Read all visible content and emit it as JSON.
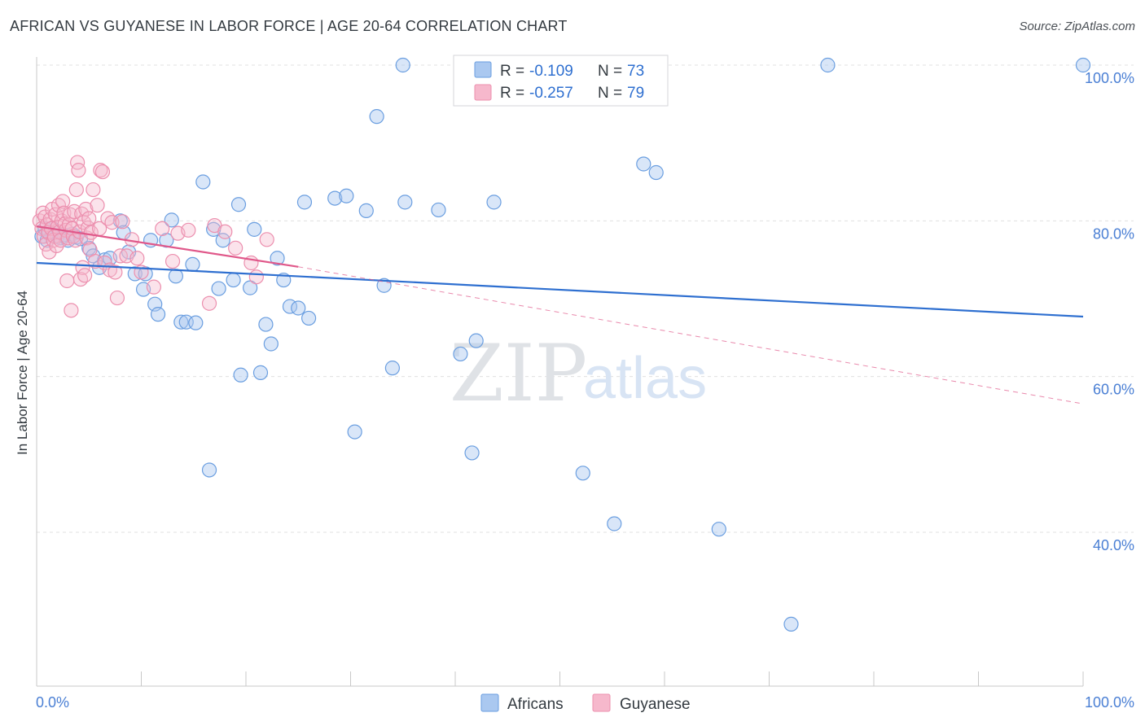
{
  "title": "AFRICAN VS GUYANESE IN LABOR FORCE | AGE 20-64 CORRELATION CHART",
  "source": "Source: ZipAtlas.com",
  "watermark": {
    "zip": "ZIP",
    "atlas": "atlas"
  },
  "colors": {
    "africans_fill": "#aac8f0",
    "africans_stroke": "#6a9ee0",
    "africans_line": "#2e6fd0",
    "guyanese_fill": "#f6b8cc",
    "guyanese_stroke": "#ec8fae",
    "guyanese_line": "#e0588a",
    "grid": "#e0e0e0",
    "tick_text": "#4a7fd4"
  },
  "legend": {
    "r_label": "R =",
    "n_label": "N =",
    "africans_r": "-0.109",
    "africans_n": "73",
    "guyanese_r": "-0.257",
    "guyanese_n": "79"
  },
  "bottom_legend": [
    "Africans",
    "Guyanese"
  ],
  "chart_data": {
    "type": "scatter",
    "title": "AFRICAN VS GUYANESE IN LABOR FORCE | AGE 20-64 CORRELATION CHART",
    "xlabel": "",
    "ylabel": "In Labor Force | Age 20-64",
    "xlim": [
      0,
      100
    ],
    "ylim": [
      20,
      102
    ],
    "x_tick_labels": [
      "0.0%",
      "100.0%"
    ],
    "y_ticks": [
      40,
      60,
      80,
      100
    ],
    "y_tick_labels": [
      "40.0%",
      "60.0%",
      "80.0%",
      "100.0%"
    ],
    "grid": true,
    "series": [
      {
        "name": "Africans",
        "r": -0.109,
        "n": 73,
        "trend": {
          "x": [
            0,
            100
          ],
          "y": [
            74.6,
            67.7
          ]
        },
        "points": [
          [
            0.5,
            78
          ],
          [
            0.8,
            79
          ],
          [
            1,
            77.5
          ],
          [
            1.2,
            78.5
          ],
          [
            1.5,
            79
          ],
          [
            2,
            78
          ],
          [
            2.3,
            77.8
          ],
          [
            2.6,
            78.2
          ],
          [
            3,
            77.5
          ],
          [
            3.4,
            78.3
          ],
          [
            3.8,
            77.9
          ],
          [
            4.2,
            77.7
          ],
          [
            5,
            76.5
          ],
          [
            5.4,
            75.5
          ],
          [
            6,
            74
          ],
          [
            6.5,
            75
          ],
          [
            7,
            75.2
          ],
          [
            8,
            80
          ],
          [
            8.3,
            78.5
          ],
          [
            8.8,
            76
          ],
          [
            9.4,
            73.2
          ],
          [
            10.2,
            71.2
          ],
          [
            10.4,
            73.2
          ],
          [
            10.9,
            77.5
          ],
          [
            11.3,
            69.3
          ],
          [
            11.6,
            68
          ],
          [
            12.4,
            77.5
          ],
          [
            12.9,
            80.1
          ],
          [
            13.3,
            72.9
          ],
          [
            13.8,
            67
          ],
          [
            14.3,
            67
          ],
          [
            14.9,
            74.4
          ],
          [
            15.2,
            66.9
          ],
          [
            15.9,
            85
          ],
          [
            16.5,
            48
          ],
          [
            16.9,
            78.9
          ],
          [
            17.4,
            71.3
          ],
          [
            17.8,
            77.5
          ],
          [
            18.8,
            72.4
          ],
          [
            19.3,
            82.1
          ],
          [
            19.5,
            60.2
          ],
          [
            20.4,
            71.4
          ],
          [
            20.8,
            78.9
          ],
          [
            21.4,
            60.5
          ],
          [
            21.9,
            66.7
          ],
          [
            22.4,
            64.2
          ],
          [
            23,
            75.2
          ],
          [
            23.6,
            72.4
          ],
          [
            24.2,
            69
          ],
          [
            25,
            68.8
          ],
          [
            25.6,
            82.4
          ],
          [
            26,
            67.5
          ],
          [
            28.5,
            82.9
          ],
          [
            29.6,
            83.2
          ],
          [
            30.4,
            52.9
          ],
          [
            31.5,
            81.3
          ],
          [
            32.5,
            93.4
          ],
          [
            33.2,
            71.7
          ],
          [
            34,
            61.1
          ],
          [
            35,
            100
          ],
          [
            35.2,
            82.4
          ],
          [
            38.4,
            81.4
          ],
          [
            40.5,
            62.9
          ],
          [
            41.6,
            50.2
          ],
          [
            42,
            64.6
          ],
          [
            43.7,
            82.4
          ],
          [
            52.2,
            47.6
          ],
          [
            55.2,
            41.1
          ],
          [
            58,
            87.3
          ],
          [
            59.2,
            86.2
          ],
          [
            65.2,
            40.4
          ],
          [
            72.1,
            28.2
          ],
          [
            75.6,
            100
          ],
          [
            100,
            100
          ]
        ]
      },
      {
        "name": "Guyanese",
        "r": -0.257,
        "n": 79,
        "trend": {
          "x": [
            0,
            25
          ],
          "y": [
            79.3,
            74.1
          ]
        },
        "trend_extended": {
          "x": [
            25,
            100
          ],
          "y": [
            74.1,
            56.5
          ]
        },
        "points": [
          [
            0.3,
            80
          ],
          [
            0.5,
            79
          ],
          [
            0.6,
            81
          ],
          [
            0.7,
            78
          ],
          [
            0.8,
            80.5
          ],
          [
            0.9,
            77
          ],
          [
            1,
            79.5
          ],
          [
            1.1,
            78.5
          ],
          [
            1.2,
            76
          ],
          [
            1.3,
            80.2
          ],
          [
            1.4,
            79
          ],
          [
            1.5,
            81.5
          ],
          [
            1.6,
            77.5
          ],
          [
            1.7,
            78
          ],
          [
            1.8,
            80.8
          ],
          [
            1.9,
            76.8
          ],
          [
            2,
            79.2
          ],
          [
            2.1,
            82
          ],
          [
            2.2,
            78.6
          ],
          [
            2.3,
            77.5
          ],
          [
            2.4,
            80
          ],
          [
            2.5,
            82.5
          ],
          [
            2.6,
            81
          ],
          [
            2.7,
            79.6
          ],
          [
            2.8,
            78.8
          ],
          [
            2.9,
            72.3
          ],
          [
            3,
            77.8
          ],
          [
            3.1,
            79.5
          ],
          [
            3.2,
            80.8
          ],
          [
            3.3,
            68.5
          ],
          [
            3.4,
            79
          ],
          [
            3.5,
            78
          ],
          [
            3.6,
            81.2
          ],
          [
            3.7,
            77.5
          ],
          [
            3.8,
            84
          ],
          [
            3.9,
            87.5
          ],
          [
            4,
            86.5
          ],
          [
            4.1,
            78.6
          ],
          [
            4.2,
            72.5
          ],
          [
            4.3,
            80.9
          ],
          [
            4.4,
            74
          ],
          [
            4.5,
            79.8
          ],
          [
            4.6,
            73
          ],
          [
            4.7,
            81.5
          ],
          [
            4.8,
            77.8
          ],
          [
            4.9,
            79.1
          ],
          [
            5,
            80.3
          ],
          [
            5.1,
            76.3
          ],
          [
            5.2,
            78.5
          ],
          [
            5.4,
            84
          ],
          [
            5.6,
            74.8
          ],
          [
            5.8,
            82
          ],
          [
            6,
            79
          ],
          [
            6.1,
            86.5
          ],
          [
            6.3,
            86.3
          ],
          [
            6.5,
            74.6
          ],
          [
            6.8,
            80.3
          ],
          [
            7,
            73.7
          ],
          [
            7.2,
            79.8
          ],
          [
            7.5,
            73.4
          ],
          [
            7.7,
            70.1
          ],
          [
            8,
            75.5
          ],
          [
            8.2,
            79.9
          ],
          [
            8.6,
            75.5
          ],
          [
            9.1,
            77.6
          ],
          [
            9.6,
            75.2
          ],
          [
            10,
            73.4
          ],
          [
            11.2,
            71.5
          ],
          [
            12,
            79
          ],
          [
            13,
            74.8
          ],
          [
            13.5,
            78.4
          ],
          [
            14.5,
            78.8
          ],
          [
            16.5,
            69.4
          ],
          [
            17,
            79.4
          ],
          [
            18,
            78.6
          ],
          [
            19,
            76.5
          ],
          [
            20.5,
            74.6
          ],
          [
            21,
            72.8
          ],
          [
            22,
            77.6
          ]
        ]
      }
    ]
  }
}
